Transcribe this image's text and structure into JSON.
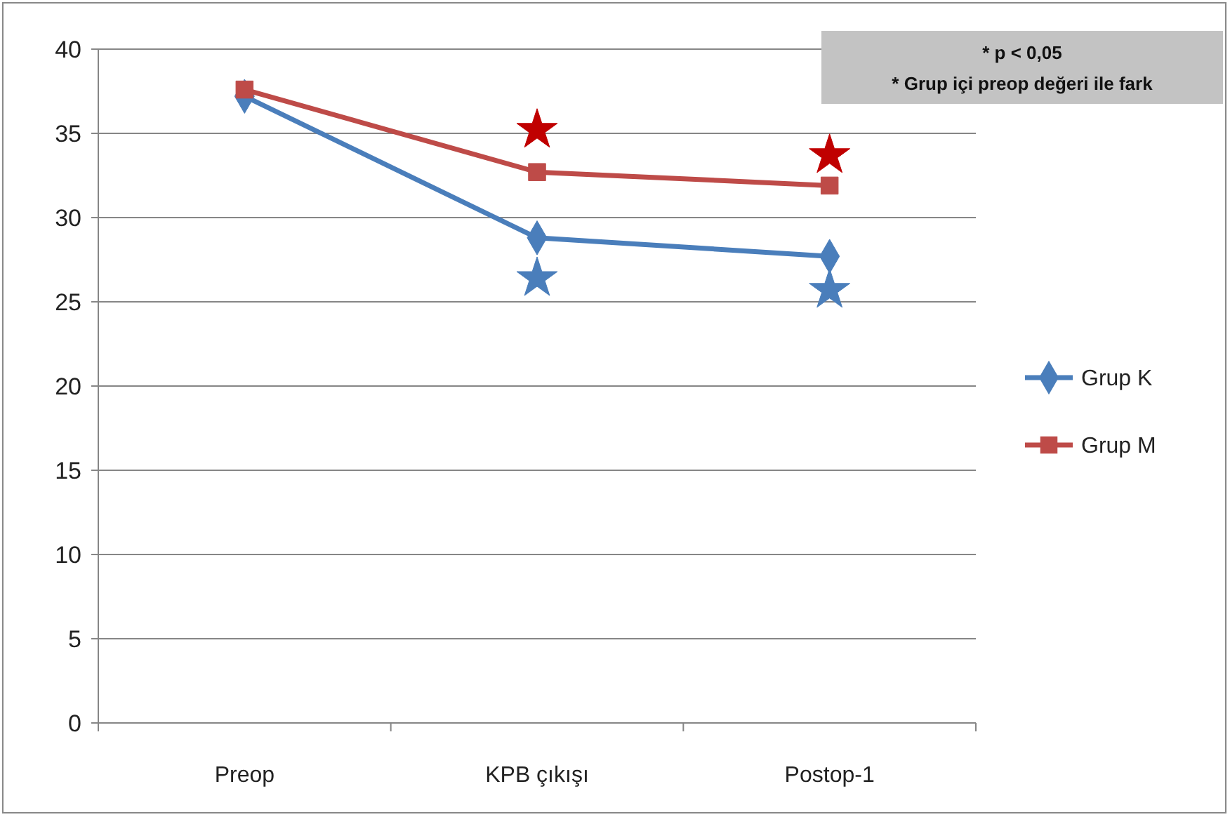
{
  "chart_data": {
    "type": "line",
    "categories": [
      "Preop",
      "KPB çıkışı",
      "Postop-1"
    ],
    "series": [
      {
        "name": "Grup K",
        "color": "#4a7ebb",
        "values": [
          37.2,
          28.8,
          27.7
        ],
        "marker": "diamond"
      },
      {
        "name": "Grup M",
        "color": "#be4b48",
        "values": [
          37.6,
          32.7,
          31.9
        ],
        "marker": "square"
      },
      {
        "type": "scatter",
        "color": "#4a7ebb",
        "values": [
          null,
          26.4,
          25.7
        ],
        "marker": "star"
      },
      {
        "type": "scatter",
        "color": "#c00000",
        "values": [
          null,
          35.2,
          33.7
        ],
        "marker": "star"
      }
    ],
    "ylim": [
      0,
      40
    ],
    "yticks": [
      0,
      5,
      10,
      15,
      20,
      25,
      30,
      35,
      40
    ],
    "grid": "y",
    "legend": "right",
    "annotations": [
      "* p < 0,05",
      "* Grup içi preop değeri ile fark"
    ]
  }
}
